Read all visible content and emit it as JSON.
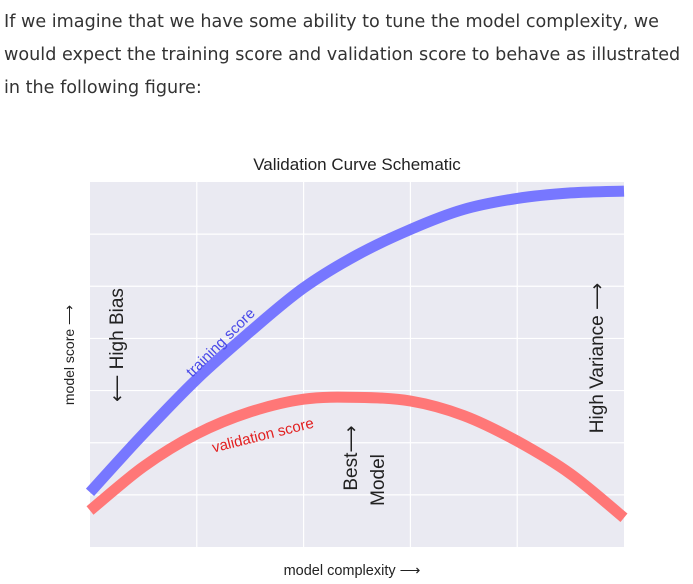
{
  "intro_text": "If we imagine that we have some ability to tune the model complexity, we would expect the training score and validation score to behave as illustrated in the following figure:",
  "chart_data": {
    "type": "line",
    "title": "Validation Curve Schematic",
    "xlabel": "model complexity ⟶",
    "ylabel": "model score ⟶",
    "xlim": [
      0,
      10
    ],
    "ylim": [
      0,
      10
    ],
    "grid": true,
    "background_color": "#eaeaf2",
    "grid_color": "#ffffff",
    "series": [
      {
        "name": "training score",
        "color": "#7777ff",
        "x": [
          0,
          1,
          2,
          3,
          4,
          5,
          6,
          7,
          8,
          9,
          10
        ],
        "values": [
          1.5,
          3.1,
          4.6,
          5.9,
          7.1,
          8.0,
          8.7,
          9.25,
          9.55,
          9.7,
          9.75
        ]
      },
      {
        "name": "validation score",
        "color": "#ff7777",
        "x": [
          0,
          1,
          2,
          3,
          4,
          5,
          6,
          7,
          8,
          9,
          10
        ],
        "values": [
          1.0,
          2.2,
          3.1,
          3.7,
          4.05,
          4.1,
          4.0,
          3.6,
          2.9,
          2.0,
          0.8
        ]
      }
    ],
    "annotations": [
      {
        "text": "⟵ High Bias"
      },
      {
        "text": "High Variance ⟶"
      },
      {
        "text": "Best⟶"
      },
      {
        "text": "Model"
      }
    ]
  }
}
